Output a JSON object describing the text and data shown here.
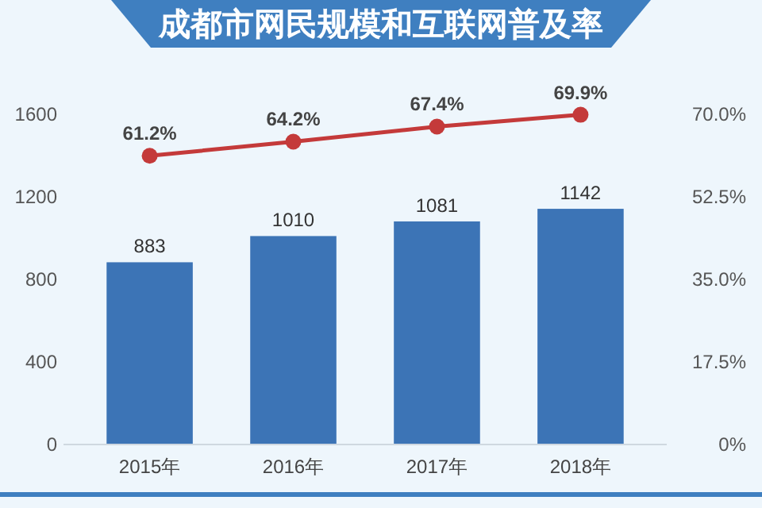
{
  "chart_data": {
    "type": "bar",
    "title": "成都市网民规模和互联网普及率",
    "categories": [
      "2015年",
      "2016年",
      "2017年",
      "2018年"
    ],
    "series": [
      {
        "color": "#3c74b6",
        "values": [
          883,
          1010,
          1081,
          1142
        ]
      },
      {
        "type": "line",
        "axis": "y2",
        "color": "#c43a3a",
        "values": [
          61.2,
          64.2,
          67.4,
          69.9
        ],
        "value_labels": [
          "61.2%",
          "64.2%",
          "67.4%",
          "69.9%"
        ]
      }
    ],
    "data_labels": true,
    "marker": "circle",
    "grid": false,
    "ylim": [
      0,
      1600
    ],
    "yticks": [
      0,
      400,
      800,
      1200,
      1600
    ],
    "y2lim": [
      0,
      70
    ],
    "y2ticks": [
      {
        "value": 0,
        "label": "0%"
      },
      {
        "value": 17.5,
        "label": "17.5%"
      },
      {
        "value": 35,
        "label": "35.0%"
      },
      {
        "value": 52.5,
        "label": "52.5%"
      },
      {
        "value": 70,
        "label": "70.0%"
      }
    ]
  }
}
